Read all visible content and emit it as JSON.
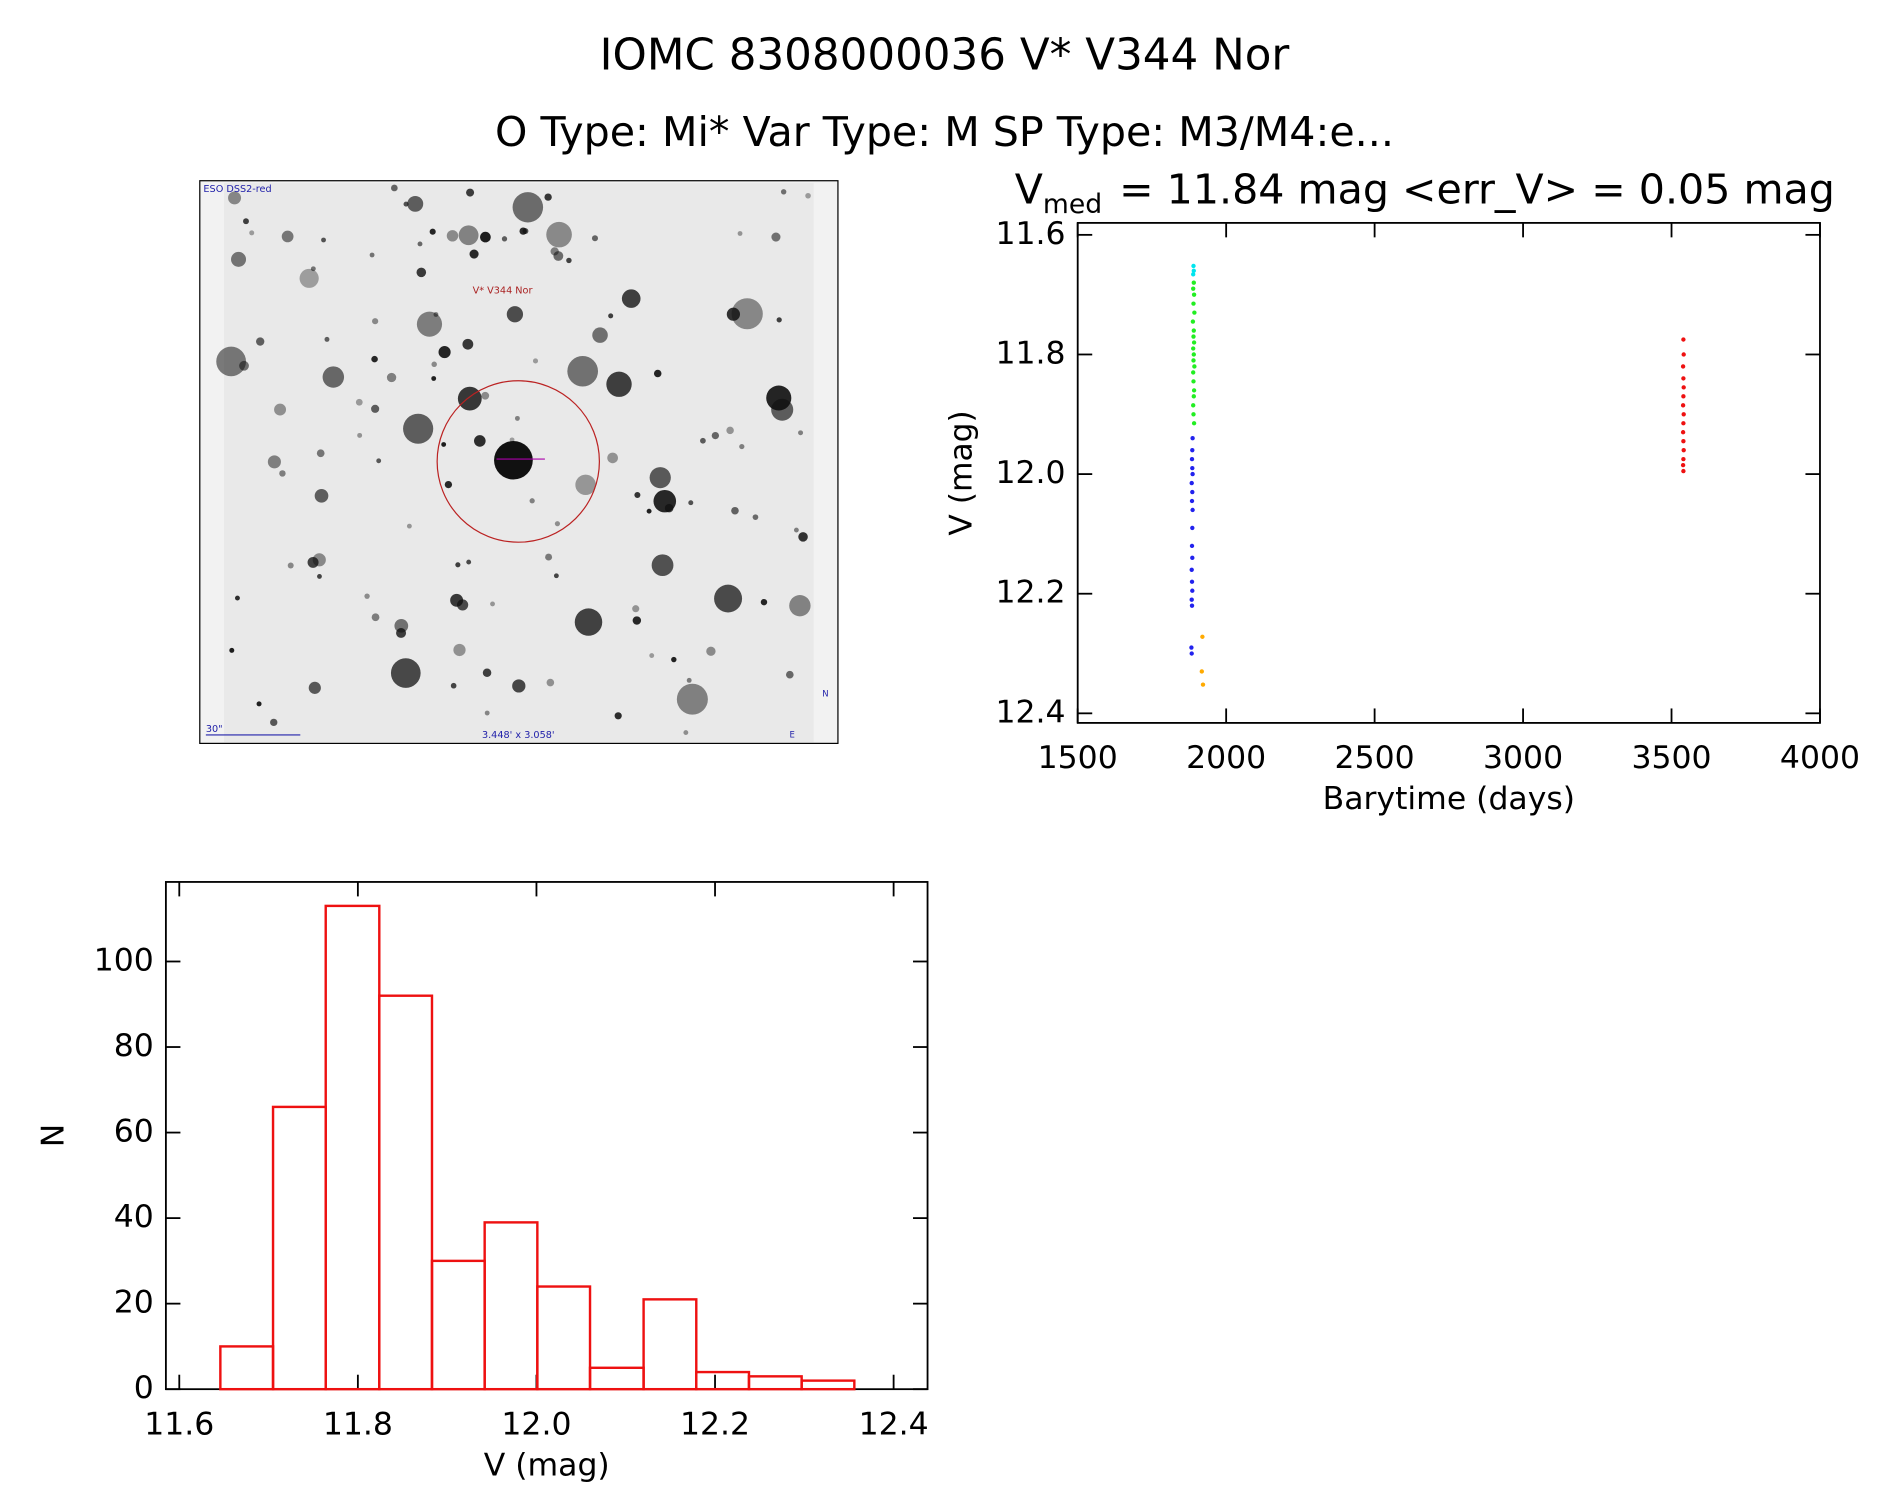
{
  "header": {
    "title": "IOMC 8308000036   V* V344 Nor",
    "subtitle": "O Type: Mi*  Var Type: M  SP Type: M3/M4:e..."
  },
  "image": {
    "survey": "ESO DSS2-red",
    "target": "V* V344 Nor",
    "scale": "30\"",
    "size": "3.448' x 3.058'",
    "north": "N",
    "east": "E"
  },
  "chart_data": [
    {
      "type": "scatter",
      "title_symbol": "V",
      "title_subscript": "med",
      "title": "= 11.84 mag <err_V> = 0.05 mag",
      "x_label": "Barytime (days)",
      "y_label": "V (mag)",
      "xlim": [
        1500,
        4000
      ],
      "xticks": [
        1500,
        2000,
        2500,
        3000,
        3500,
        4000
      ],
      "ylim": [
        11.58,
        12.416
      ],
      "y_inverted": true,
      "yticks": [
        11.6,
        11.8,
        {
          "value": 12,
          "label": "12.0"
        },
        12.2,
        12.4
      ],
      "series": [
        {
          "color": "#00e5ee",
          "x": [
            1890,
            1891,
            1889
          ],
          "values": [
            11.652,
            11.66,
            11.666
          ]
        },
        {
          "color": "#22ee22",
          "x": [
            1891,
            1889,
            1892,
            1890,
            1893,
            1888,
            1891,
            1890,
            1892,
            1889,
            1891,
            1890,
            1893,
            1889,
            1890,
            1892,
            1891,
            1889,
            1890,
            1892
          ],
          "values": [
            11.68,
            11.69,
            11.7,
            11.715,
            11.73,
            11.745,
            11.76,
            11.77,
            11.78,
            11.79,
            11.8,
            11.81,
            11.82,
            11.83,
            11.845,
            11.86,
            11.87,
            11.885,
            11.9,
            11.915
          ]
        },
        {
          "color": "#2222ee",
          "x": [
            1887,
            1886,
            1885,
            1886,
            1887,
            1884,
            1886,
            1885,
            1887,
            1886,
            1885,
            1886,
            1884,
            1885,
            1886,
            1884,
            1885,
            1883,
            1884
          ],
          "values": [
            11.94,
            11.96,
            11.975,
            11.99,
            12.0,
            12.015,
            12.03,
            12.045,
            12.06,
            12.09,
            12.12,
            12.14,
            12.16,
            12.18,
            12.195,
            12.21,
            12.22,
            12.29,
            12.3
          ]
        },
        {
          "color": "#ffaa00",
          "x": [
            1920,
            1918,
            1922
          ],
          "values": [
            12.272,
            12.33,
            12.352
          ]
        },
        {
          "color": "#ee1111",
          "x": [
            3540,
            3541,
            3539,
            3540,
            3541,
            3540,
            3539,
            3541,
            3540,
            3539,
            3540,
            3541,
            3540,
            3539,
            3540
          ],
          "values": [
            11.775,
            11.8,
            11.82,
            11.84,
            11.855,
            11.87,
            11.885,
            11.9,
            11.915,
            11.93,
            11.945,
            11.96,
            11.975,
            11.985,
            11.995
          ]
        }
      ]
    },
    {
      "type": "histogram",
      "x_label": "V (mag)",
      "y_label": "N",
      "color": "#ee1111",
      "xlim": [
        11.585,
        12.438
      ],
      "xticks": [
        11.6,
        11.8,
        {
          "value": 12,
          "label": "12.0"
        },
        12.2,
        12.4
      ],
      "ylim": [
        0,
        118.6
      ],
      "yticks": [
        0,
        20,
        40,
        60,
        80,
        100
      ],
      "bins": [
        11.646,
        11.705,
        11.764,
        11.824,
        11.883,
        11.942,
        12.001,
        12.06,
        12.12,
        12.179,
        12.238,
        12.297,
        12.356
      ],
      "values": [
        10,
        66,
        113,
        92,
        30,
        39,
        24,
        5,
        21,
        4,
        3,
        2
      ]
    }
  ]
}
